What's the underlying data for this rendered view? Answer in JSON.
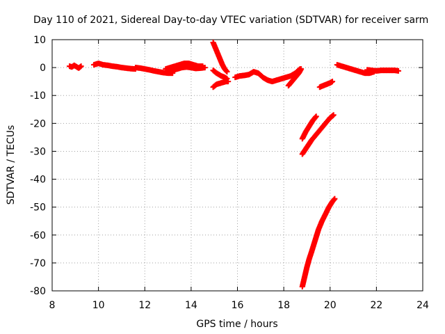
{
  "chart_data": {
    "type": "scatter",
    "title": "Day 110 of 2021, Sidereal Day-to-day VTEC variation (SDTVAR) for receiver sarm",
    "xlabel": "GPS time / hours",
    "ylabel": "SDTVAR / TECUs",
    "xlim": [
      8,
      24
    ],
    "ylim": [
      -80,
      10
    ],
    "xticks": [
      8,
      10,
      12,
      14,
      16,
      18,
      20,
      22,
      24
    ],
    "yticks": [
      10,
      0,
      -10,
      -20,
      -30,
      -40,
      -50,
      -60,
      -70,
      -80
    ],
    "grid": true,
    "marker": "plus",
    "color": "#ff0000",
    "series": [
      {
        "points": [
          [
            8.75,
            0.5
          ],
          [
            8.85,
            0.2
          ],
          [
            8.95,
            0.8
          ],
          [
            9.05,
            0.3
          ],
          [
            9.15,
            -0.2
          ],
          [
            9.25,
            0.5
          ]
        ]
      },
      {
        "points": [
          [
            9.8,
            1.0
          ],
          [
            10.0,
            1.5
          ],
          [
            10.2,
            1.0
          ],
          [
            10.4,
            0.8
          ],
          [
            10.6,
            0.5
          ],
          [
            10.8,
            0.3
          ],
          [
            11.0,
            0.0
          ],
          [
            11.2,
            -0.2
          ],
          [
            11.4,
            -0.4
          ],
          [
            11.6,
            -0.5
          ]
        ]
      },
      {
        "points": [
          [
            11.6,
            0.0
          ],
          [
            11.8,
            -0.2
          ],
          [
            12.0,
            -0.5
          ],
          [
            12.2,
            -0.8
          ],
          [
            12.4,
            -1.2
          ],
          [
            12.6,
            -1.5
          ],
          [
            12.8,
            -1.8
          ],
          [
            13.0,
            -2.0
          ],
          [
            13.2,
            -2.0
          ]
        ]
      },
      {
        "points": [
          [
            12.9,
            -0.5
          ],
          [
            13.1,
            0.0
          ],
          [
            13.3,
            0.5
          ],
          [
            13.5,
            1.0
          ],
          [
            13.7,
            1.5
          ],
          [
            13.9,
            1.5
          ],
          [
            14.1,
            1.0
          ],
          [
            14.3,
            0.5
          ],
          [
            14.5,
            0.5
          ]
        ]
      },
      {
        "points": [
          [
            13.0,
            -1.5
          ],
          [
            13.2,
            -1.0
          ],
          [
            13.4,
            -0.5
          ],
          [
            13.6,
            0.0
          ],
          [
            13.8,
            0.2
          ],
          [
            14.0,
            0.0
          ],
          [
            14.2,
            -0.3
          ],
          [
            14.4,
            -0.2
          ],
          [
            14.6,
            0.0
          ]
        ]
      },
      {
        "points": [
          [
            14.95,
            9.0
          ],
          [
            15.05,
            7.0
          ],
          [
            15.15,
            5.0
          ],
          [
            15.25,
            3.0
          ],
          [
            15.35,
            1.0
          ],
          [
            15.45,
            -0.5
          ],
          [
            15.55,
            -1.5
          ]
        ]
      },
      {
        "points": [
          [
            14.95,
            -1.0
          ],
          [
            15.1,
            -2.0
          ],
          [
            15.3,
            -3.0
          ],
          [
            15.45,
            -3.5
          ],
          [
            15.55,
            -4.0
          ]
        ]
      },
      {
        "points": [
          [
            14.95,
            -7.0
          ],
          [
            15.1,
            -6.0
          ],
          [
            15.3,
            -5.5
          ],
          [
            15.5,
            -5.0
          ],
          [
            15.6,
            -5.0
          ]
        ]
      },
      {
        "points": [
          [
            15.9,
            -3.5
          ],
          [
            16.1,
            -3.0
          ],
          [
            16.3,
            -2.8
          ],
          [
            16.5,
            -2.5
          ],
          [
            16.7,
            -1.5
          ],
          [
            16.9,
            -2.0
          ],
          [
            17.1,
            -3.5
          ],
          [
            17.3,
            -4.5
          ],
          [
            17.5,
            -5.0
          ],
          [
            17.7,
            -4.5
          ],
          [
            17.9,
            -4.0
          ],
          [
            18.1,
            -3.5
          ],
          [
            18.3,
            -3.0
          ],
          [
            18.5,
            -2.0
          ],
          [
            18.7,
            -0.5
          ]
        ]
      },
      {
        "points": [
          [
            18.2,
            -6.5
          ],
          [
            18.35,
            -5.0
          ],
          [
            18.5,
            -3.5
          ],
          [
            18.65,
            -2.0
          ],
          [
            18.75,
            -0.5
          ]
        ]
      },
      {
        "points": [
          [
            19.55,
            -7.0
          ],
          [
            19.7,
            -6.5
          ],
          [
            19.85,
            -6.0
          ],
          [
            20.0,
            -5.5
          ],
          [
            20.1,
            -5.0
          ]
        ]
      },
      {
        "points": [
          [
            18.8,
            -25.5
          ],
          [
            18.95,
            -23.0
          ],
          [
            19.1,
            -21.0
          ],
          [
            19.25,
            -19.0
          ],
          [
            19.4,
            -17.5
          ]
        ]
      },
      {
        "points": [
          [
            18.8,
            -31.0
          ],
          [
            19.0,
            -28.5
          ],
          [
            19.2,
            -26.0
          ],
          [
            19.4,
            -24.0
          ],
          [
            19.6,
            -22.0
          ],
          [
            19.8,
            -20.0
          ],
          [
            20.0,
            -18.0
          ],
          [
            20.15,
            -17.0
          ]
        ]
      },
      {
        "points": [
          [
            18.8,
            -78.5
          ],
          [
            18.9,
            -75.0
          ],
          [
            19.0,
            -71.5
          ],
          [
            19.1,
            -68.5
          ],
          [
            19.2,
            -66.0
          ],
          [
            19.35,
            -62.0
          ],
          [
            19.5,
            -58.0
          ],
          [
            19.65,
            -55.0
          ],
          [
            19.8,
            -52.5
          ],
          [
            19.95,
            -50.0
          ],
          [
            20.1,
            -48.0
          ],
          [
            20.2,
            -47.0
          ]
        ]
      },
      {
        "points": [
          [
            20.3,
            1.0
          ],
          [
            20.5,
            0.5
          ],
          [
            20.7,
            0.0
          ],
          [
            20.9,
            -0.5
          ],
          [
            21.1,
            -1.0
          ],
          [
            21.3,
            -1.5
          ],
          [
            21.5,
            -2.0
          ],
          [
            21.7,
            -2.0
          ],
          [
            21.9,
            -1.5
          ]
        ]
      },
      {
        "points": [
          [
            21.6,
            -0.8
          ],
          [
            21.8,
            -1.0
          ],
          [
            22.0,
            -1.2
          ],
          [
            22.2,
            -1.0
          ],
          [
            22.4,
            -1.0
          ],
          [
            22.6,
            -1.0
          ],
          [
            22.8,
            -1.0
          ],
          [
            22.95,
            -1.2
          ]
        ]
      }
    ]
  }
}
